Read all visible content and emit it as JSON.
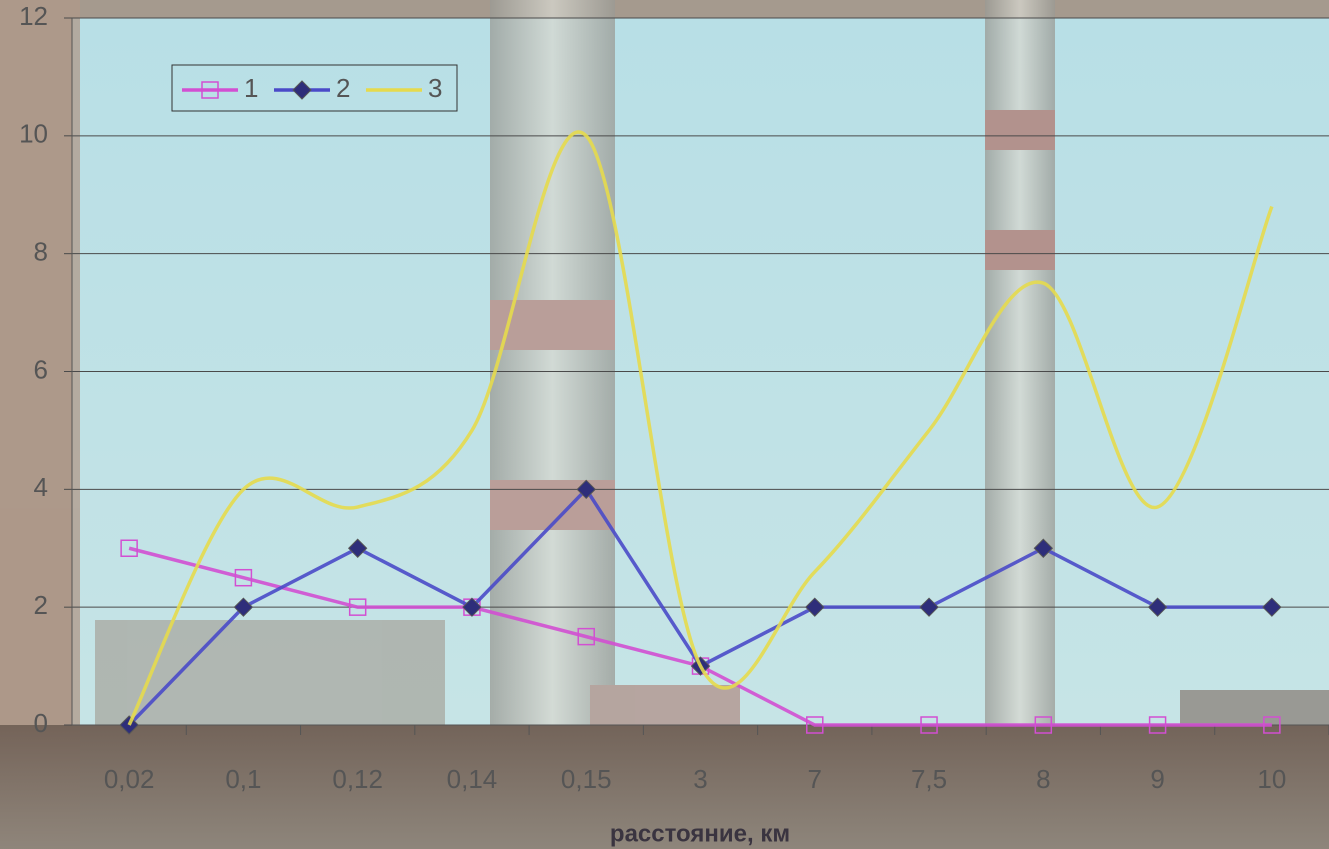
{
  "chart_data": {
    "type": "line",
    "x_label": "расстояние, км",
    "categories": [
      "0,02",
      "0,1",
      "0,12",
      "0,14",
      "0,15",
      "3",
      "7",
      "7,5",
      "8",
      "9",
      "10"
    ],
    "series": [
      {
        "name": "1",
        "color": "#d24fd2",
        "marker": "square",
        "smooth": false,
        "values": [
          3,
          2.5,
          2,
          2,
          1.5,
          1,
          0,
          0,
          0,
          0,
          0
        ]
      },
      {
        "name": "2",
        "color": "#4a4ac8",
        "marker": "diamond",
        "smooth": false,
        "values": [
          0,
          2,
          3,
          2,
          4,
          1,
          2,
          2,
          3,
          2,
          2
        ]
      },
      {
        "name": "3",
        "color": "#e6da4c",
        "marker": "none",
        "smooth": true,
        "values": [
          0,
          4,
          3.7,
          5,
          10,
          1,
          2.6,
          5,
          7.5,
          3.7,
          8.8
        ]
      }
    ],
    "ylim": [
      0,
      12
    ],
    "yticks": [
      0,
      2,
      4,
      6,
      8,
      10,
      12
    ],
    "grid": true,
    "legend": "top-left"
  }
}
